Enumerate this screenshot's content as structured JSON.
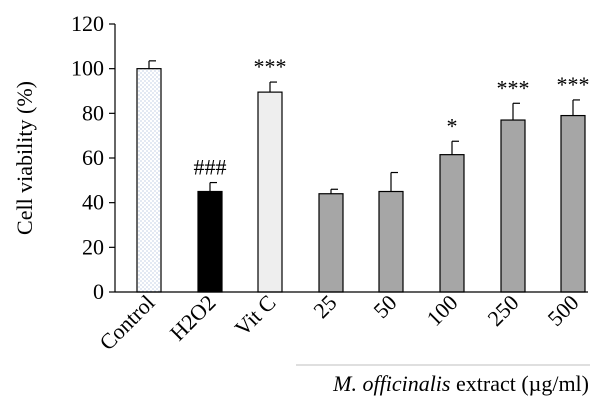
{
  "chart_data": {
    "type": "bar",
    "ylabel": "Cell viability (%)",
    "xlabel_italic": "M. officinalis",
    "xlabel_rest": " extract (µg/ml)",
    "ylim": [
      0,
      120
    ],
    "yticks": [
      0,
      20,
      40,
      60,
      80,
      100,
      120
    ],
    "grid": false,
    "categories": [
      "Control",
      "H2O2",
      "Vit C",
      "25",
      "50",
      "100",
      "250",
      "500"
    ],
    "values": [
      100,
      45,
      89.5,
      44,
      45,
      61.5,
      77,
      79
    ],
    "errors": [
      3.5,
      4,
      4.5,
      2,
      8.5,
      6,
      7.5,
      7
    ],
    "significance": [
      "",
      "###",
      "***",
      "",
      "",
      "*",
      "***",
      "***"
    ],
    "bar_styles": [
      "dotted-white",
      "black",
      "light-gray",
      "gray",
      "gray",
      "gray",
      "gray",
      "gray"
    ],
    "colors": {
      "black": "#000000",
      "light-gray": "#eeeeee",
      "gray": "#a6a6a6",
      "dotted-white": "#ffffff"
    }
  }
}
